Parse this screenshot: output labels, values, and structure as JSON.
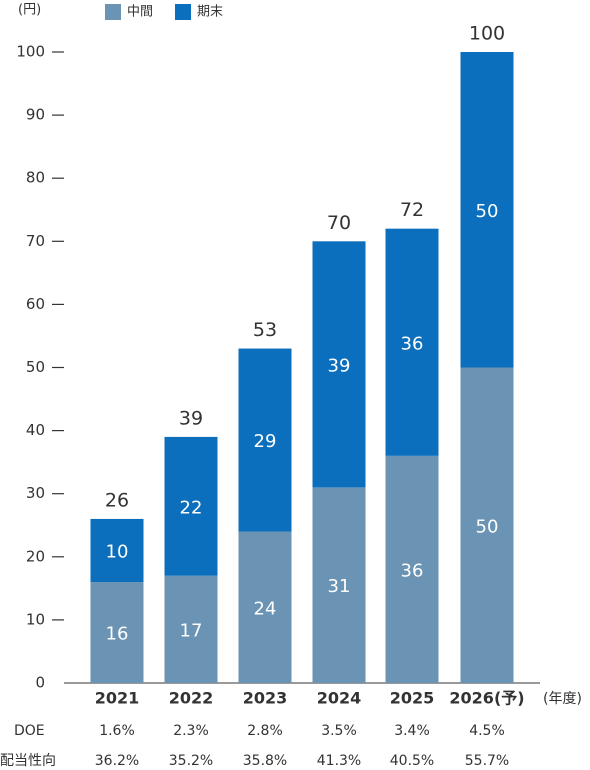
{
  "chart_data": {
    "type": "stacked-bar",
    "y_label": "(円)",
    "x_label": "(年度)",
    "categories": [
      "2021",
      "2022",
      "2023",
      "2024",
      "2025",
      "2026(予)"
    ],
    "series": [
      {
        "name": "中間",
        "color": "#6b93b3",
        "values": [
          16,
          17,
          24,
          31,
          36,
          50
        ]
      },
      {
        "name": "期末",
        "color": "#0b6fbd",
        "values": [
          10,
          22,
          29,
          39,
          36,
          50
        ]
      }
    ],
    "totals": [
      26,
      39,
      53,
      70,
      72,
      100
    ],
    "ylim": [
      0,
      100
    ],
    "yticks": [
      0,
      10,
      20,
      30,
      40,
      50,
      60,
      70,
      80,
      90,
      100
    ],
    "table": {
      "rows": [
        {
          "label": "DOE",
          "values": [
            "1.6%",
            "2.3%",
            "2.8%",
            "3.5%",
            "3.4%",
            "4.5%"
          ]
        },
        {
          "label": "配当性向",
          "values": [
            "36.2%",
            "35.2%",
            "35.8%",
            "41.3%",
            "40.5%",
            "55.7%"
          ]
        }
      ]
    }
  }
}
